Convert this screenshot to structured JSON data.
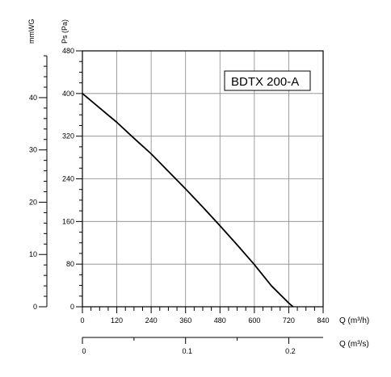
{
  "chart_data": {
    "type": "line",
    "title": "BDTX 200-A",
    "xlabel": "Q (m³/h)",
    "x2label": "Q (m³/s)",
    "ylabel": "Ps (Pa)",
    "y2label": "mmWG",
    "xlim": [
      0,
      840
    ],
    "ylim": [
      0,
      480
    ],
    "x_ticks": [
      0,
      120,
      240,
      360,
      480,
      600,
      720,
      840
    ],
    "y_ticks": [
      0,
      80,
      160,
      240,
      320,
      400,
      480
    ],
    "x2_ticks": [
      0,
      0.1,
      0.2
    ],
    "x2_tick_labels": [
      "0",
      "0.1",
      "0.2"
    ],
    "y2_ticks": [
      0,
      10,
      20,
      30,
      40
    ],
    "grid": true,
    "series": [
      {
        "values_x": [
          0,
          60,
          120,
          180,
          240,
          300,
          360,
          420,
          480,
          540,
          600,
          660,
          720,
          735
        ],
        "values_y": [
          400,
          373,
          346,
          316,
          287,
          254,
          221,
          187,
          152,
          116,
          79,
          39,
          7,
          0
        ]
      }
    ]
  }
}
